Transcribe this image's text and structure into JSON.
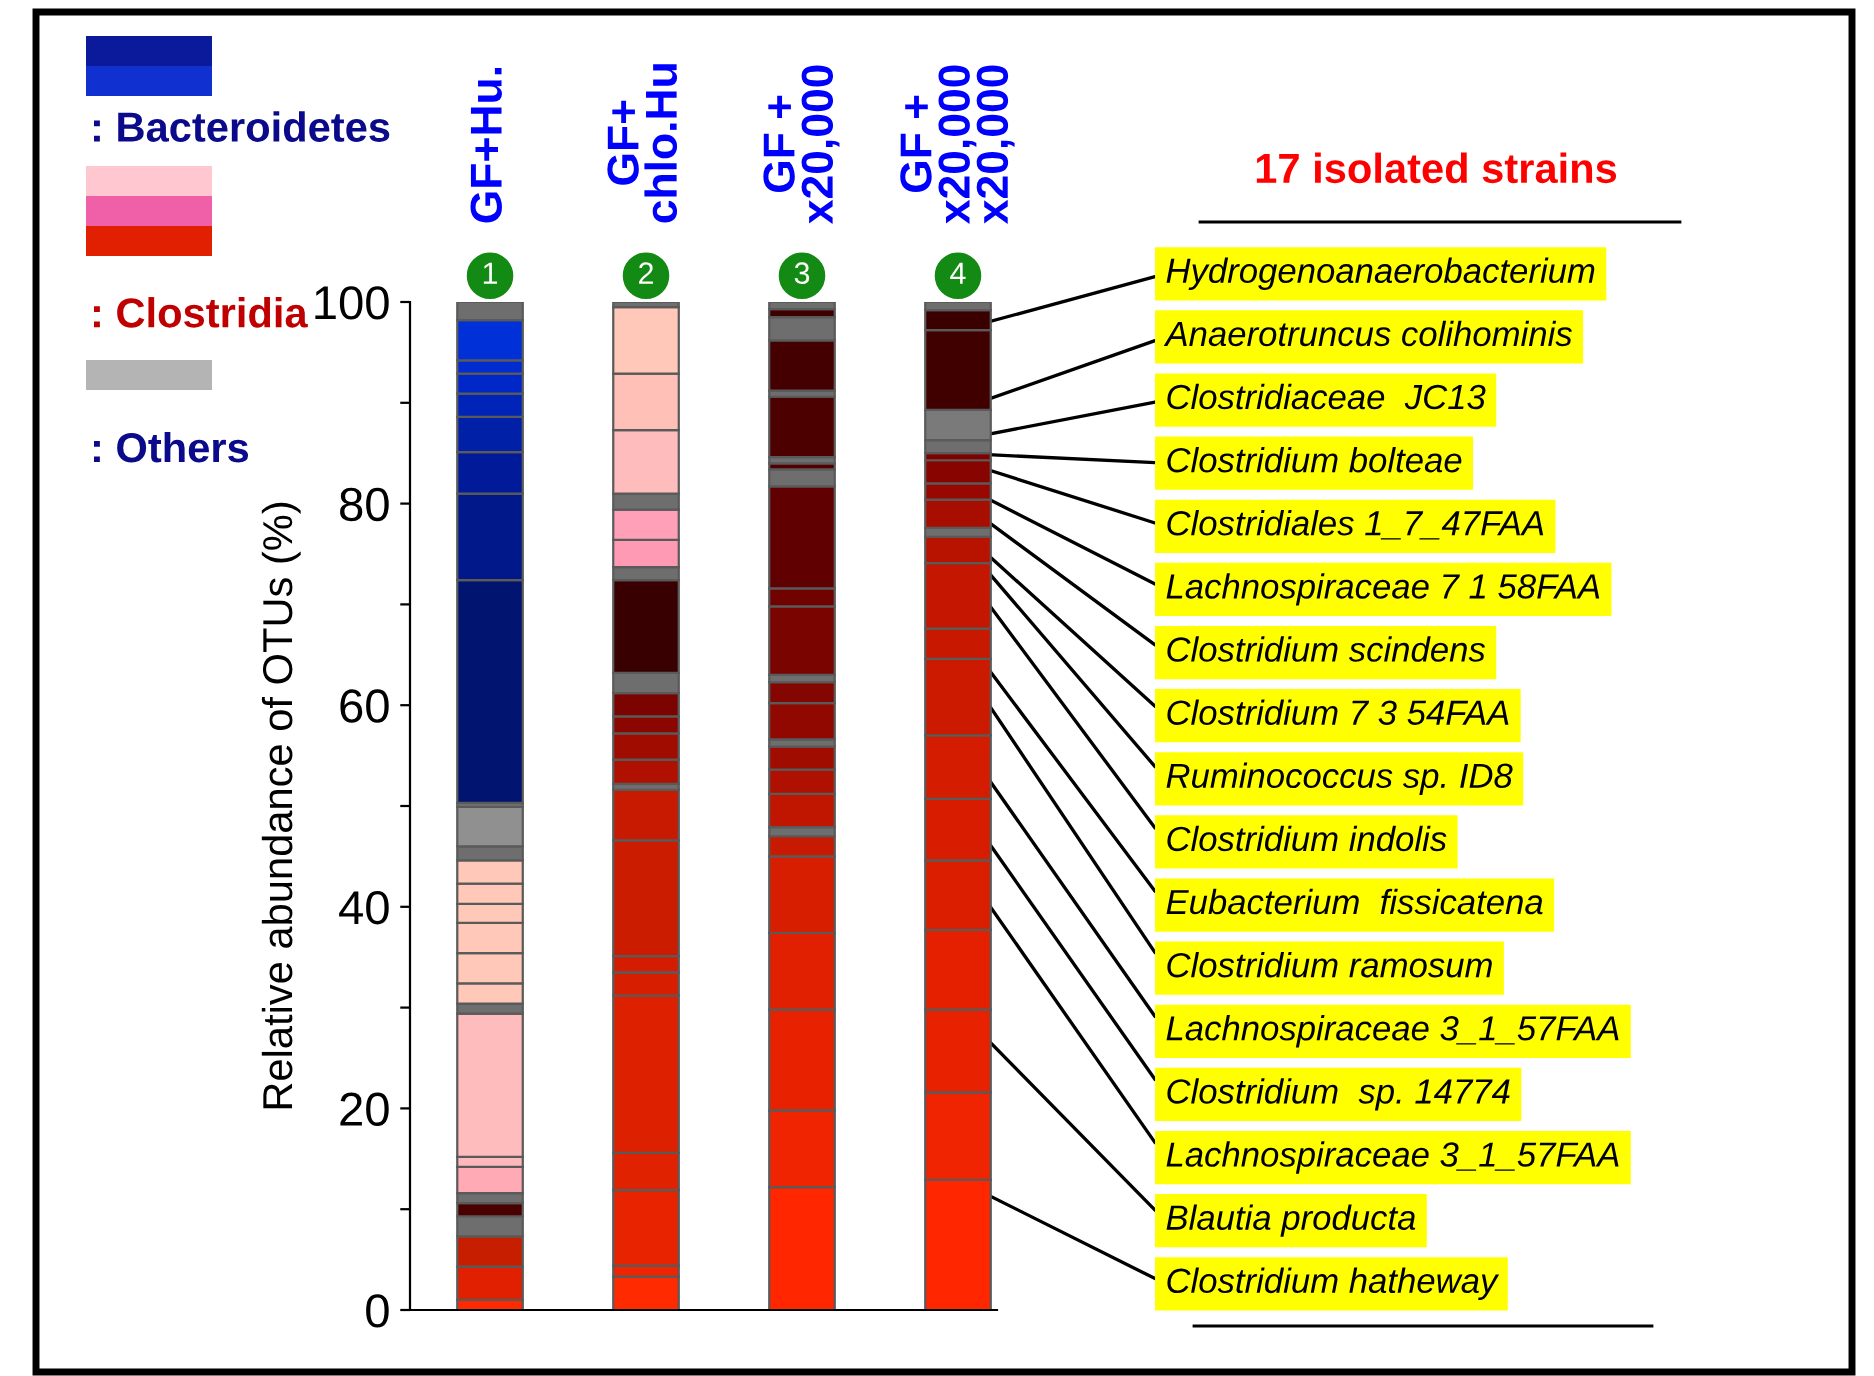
{
  "chart_data": {
    "type": "bar",
    "stacked": true,
    "categories": [
      "GF+Hu.",
      "GF+\nchlo.Hu",
      "GF +\nx20,000",
      "GF +\nx20,000\nx20,000"
    ],
    "ylabel": "Relative abundance of OTUs (%)",
    "ylim": [
      0,
      100
    ],
    "yticks": [
      0,
      {
        "value": 10,
        "label": null
      },
      20,
      {
        "value": 30,
        "label": null
      },
      40,
      {
        "value": 50,
        "label": null
      },
      60,
      {
        "value": 70,
        "label": null
      },
      80,
      {
        "value": 90,
        "label": null
      },
      100
    ],
    "grid": false,
    "legend": false,
    "series": [
      {
        "values": [
          1,
          3.3,
          12.2,
          12.9
        ],
        "colors": [
          "#ff2a00",
          "#ff2a00",
          "#ff2600",
          "#ff2600"
        ]
      },
      {
        "values": [
          3.3,
          1.1,
          7.6,
          8.7
        ],
        "colors": [
          "#e02000",
          "#f02400",
          "#f02400",
          "#f02400"
        ]
      },
      {
        "values": [
          3,
          7.5,
          10,
          8.2
        ],
        "colors": [
          "#c81e00",
          "#e82400",
          "#e82200",
          "#e82200"
        ]
      },
      {
        "values": [
          2,
          3.7,
          7.6,
          7.9
        ],
        "colors": [
          "#6e6e6e",
          "#e02200",
          "#e02000",
          "#e42000"
        ]
      },
      {
        "values": [
          1.3,
          15.6,
          7.6,
          6.9
        ],
        "colors": [
          "#4a0000",
          "#dc2000",
          "#d81e00",
          "#dc1e00"
        ]
      },
      {
        "values": [
          1,
          2.3,
          2,
          6.1
        ],
        "colors": [
          "#6e6e6e",
          "#d81e00",
          "#c81a00",
          "#d81c00"
        ]
      },
      {
        "values": [
          2.6,
          1.6,
          0.9,
          6.3
        ],
        "colors": [
          "#ffaab4",
          "#d41c00",
          "#6e6e6e",
          "#d41c00"
        ]
      },
      {
        "values": [
          1,
          11.5,
          3.3,
          7.6
        ],
        "colors": [
          "#ffb8bc",
          "#cc1c00",
          "#c01600",
          "#cc1a00"
        ]
      },
      {
        "values": [
          14.2,
          5,
          2.4,
          3
        ],
        "colors": [
          "#ffbcbc",
          "#c81a00",
          "#b01000",
          "#c81800"
        ]
      },
      {
        "values": [
          1,
          0.6,
          2.3,
          6.5
        ],
        "colors": [
          "#6e6e6e",
          "#6e6e6e",
          "#a00c00",
          "#c41600"
        ]
      },
      {
        "values": [
          2,
          2.4,
          0.7,
          2.6
        ],
        "colors": [
          "#ffc8b8",
          "#b01000",
          "#6e6e6e",
          "#b81200"
        ]
      },
      {
        "values": [
          3,
          2.6,
          3.6,
          0.9
        ],
        "colors": [
          "#ffc8b8",
          "#a00c00",
          "#900800",
          "#6e6e6e"
        ]
      },
      {
        "values": [
          3,
          1.7,
          2.1,
          2.8
        ],
        "colors": [
          "#ffc8b8",
          "#8c0600",
          "#840600",
          "#a80e00"
        ]
      },
      {
        "values": [
          1.9,
          2.3,
          0.7,
          1.6
        ],
        "colors": [
          "#ffc8b8",
          "#7c0400",
          "#6e6e6e",
          "#980800"
        ]
      },
      {
        "values": [
          2,
          2,
          6.8,
          2.3
        ],
        "colors": [
          "#ffc8b8",
          "#6e6e6e",
          "#7a0400",
          "#880400"
        ]
      },
      {
        "values": [
          2.3,
          9.2,
          1.8,
          0.7
        ],
        "colors": [
          "#ffc8b8",
          "#380000",
          "#700200",
          "#800000"
        ]
      },
      {
        "values": [
          1.4,
          1.3,
          10.1,
          1.3
        ],
        "colors": [
          "#6e6e6e",
          "#6e6e6e",
          "#600000",
          "#6e6e6e"
        ]
      },
      {
        "values": [
          3.9,
          2.7,
          1.7,
          3
        ],
        "colors": [
          "#909090",
          "#ff9ab4",
          "#6e6e6e",
          "#7a7a7a"
        ]
      },
      {
        "values": [
          0.4,
          3,
          0.6,
          7.9
        ],
        "colors": [
          "#6e6e6e",
          "#ffa0b8",
          "#500000",
          "#400000"
        ]
      },
      {
        "values": [
          22.1,
          1.6,
          0.6,
          2
        ],
        "colors": [
          "#001470",
          "#6e6e6e",
          "#6e6e6e",
          "#3a0000"
        ]
      },
      {
        "values": [
          8.6,
          6.3,
          6,
          0.8
        ],
        "colors": [
          "#00188a",
          "#ffbcbc",
          "#4c0000",
          "#6e6e6e"
        ]
      },
      {
        "values": [
          4.1,
          5.6,
          0.6,
          null
        ],
        "colors": [
          "#001a9a",
          "#ffc0b8",
          "#6e6e6e",
          null
        ]
      },
      {
        "values": [
          3.5,
          6.6,
          5,
          null
        ],
        "colors": [
          "#0020a8",
          "#ffc8b8",
          "#440000",
          null
        ]
      },
      {
        "values": [
          2.3,
          0.5,
          2.3,
          null
        ],
        "colors": [
          "#0024b8",
          "#6e6e6e",
          "#6e6e6e",
          null
        ]
      },
      {
        "values": [
          2,
          null,
          0.8,
          null
        ],
        "colors": [
          "#0028c8",
          null,
          "#3c0000",
          null
        ]
      },
      {
        "values": [
          1.3,
          null,
          0.7,
          null
        ],
        "colors": [
          "#002cd0",
          null,
          "#6e6e6e",
          null
        ]
      },
      {
        "values": [
          4,
          null,
          null,
          null
        ],
        "colors": [
          "#0030d8",
          null,
          null,
          null
        ]
      },
      {
        "values": [
          1.8,
          null,
          null,
          null
        ],
        "colors": [
          "#6e6e6e",
          null,
          null,
          null
        ]
      }
    ],
    "annotations": [
      ": Bacteroidetes",
      ": Clostridia",
      ": Others",
      "17 isolated strains",
      "1",
      "2",
      "3",
      "4",
      {
        "text": "Hydrogenoanaerobacterium",
        "x": "GF +\nx20,000\nx20,000",
        "y": 97.2
      },
      {
        "text": "Anaerotruncus colihominis",
        "x": "GF +\nx20,000\nx20,000",
        "y": 89.3
      },
      {
        "text": "Clostridiaceae  JC13",
        "x": "GF +\nx20,000\nx20,000",
        "y": 86.3
      },
      {
        "text": "Clostridium bolteae",
        "x": "GF +\nx20,000\nx20,000",
        "y": 85.0
      },
      {
        "text": "Clostridiales 1_7_47FAA",
        "x": "GF +\nx20,000\nx20,000",
        "y": 84.3
      },
      {
        "text": "Lachnospiraceae 7 1 58FAA",
        "x": "GF +\nx20,000\nx20,000",
        "y": 82.0
      },
      {
        "text": "Clostridium scindens",
        "x": "GF +\nx20,000\nx20,000",
        "y": 80.4
      },
      {
        "text": "Clostridium 7 3 54FAA",
        "x": "GF +\nx20,000\nx20,000",
        "y": 77.6
      },
      {
        "text": "Ruminococcus sp. ID8",
        "x": "GF +\nx20,000\nx20,000",
        "y": 76.7
      },
      {
        "text": "Clostridium indolis",
        "x": "GF +\nx20,000\nx20,000",
        "y": 74.1
      },
      {
        "text": "Eubacterium  fissicatena",
        "x": "GF +\nx20,000\nx20,000",
        "y": 67.6
      },
      {
        "text": "Clostridium ramosum",
        "x": "GF +\nx20,000\nx20,000",
        "y": 64.6
      },
      {
        "text": "Lachnospiraceae 3_1_57FAA",
        "x": "GF +\nx20,000\nx20,000",
        "y": 57.0
      },
      {
        "text": "Clostridium  sp. 14774",
        "x": "GF +\nx20,000\nx20,000",
        "y": 50.7
      },
      {
        "text": "Lachnospiraceae 3_1_57FAA",
        "x": "GF +\nx20,000\nx20,000",
        "y": 44.6
      },
      {
        "text": "Blautia producta",
        "x": "GF +\nx20,000\nx20,000",
        "y": 29.8
      },
      {
        "text": "Clostridium hatheway",
        "x": "GF +\nx20,000\nx20,000",
        "y": 12.9
      }
    ]
  }
}
